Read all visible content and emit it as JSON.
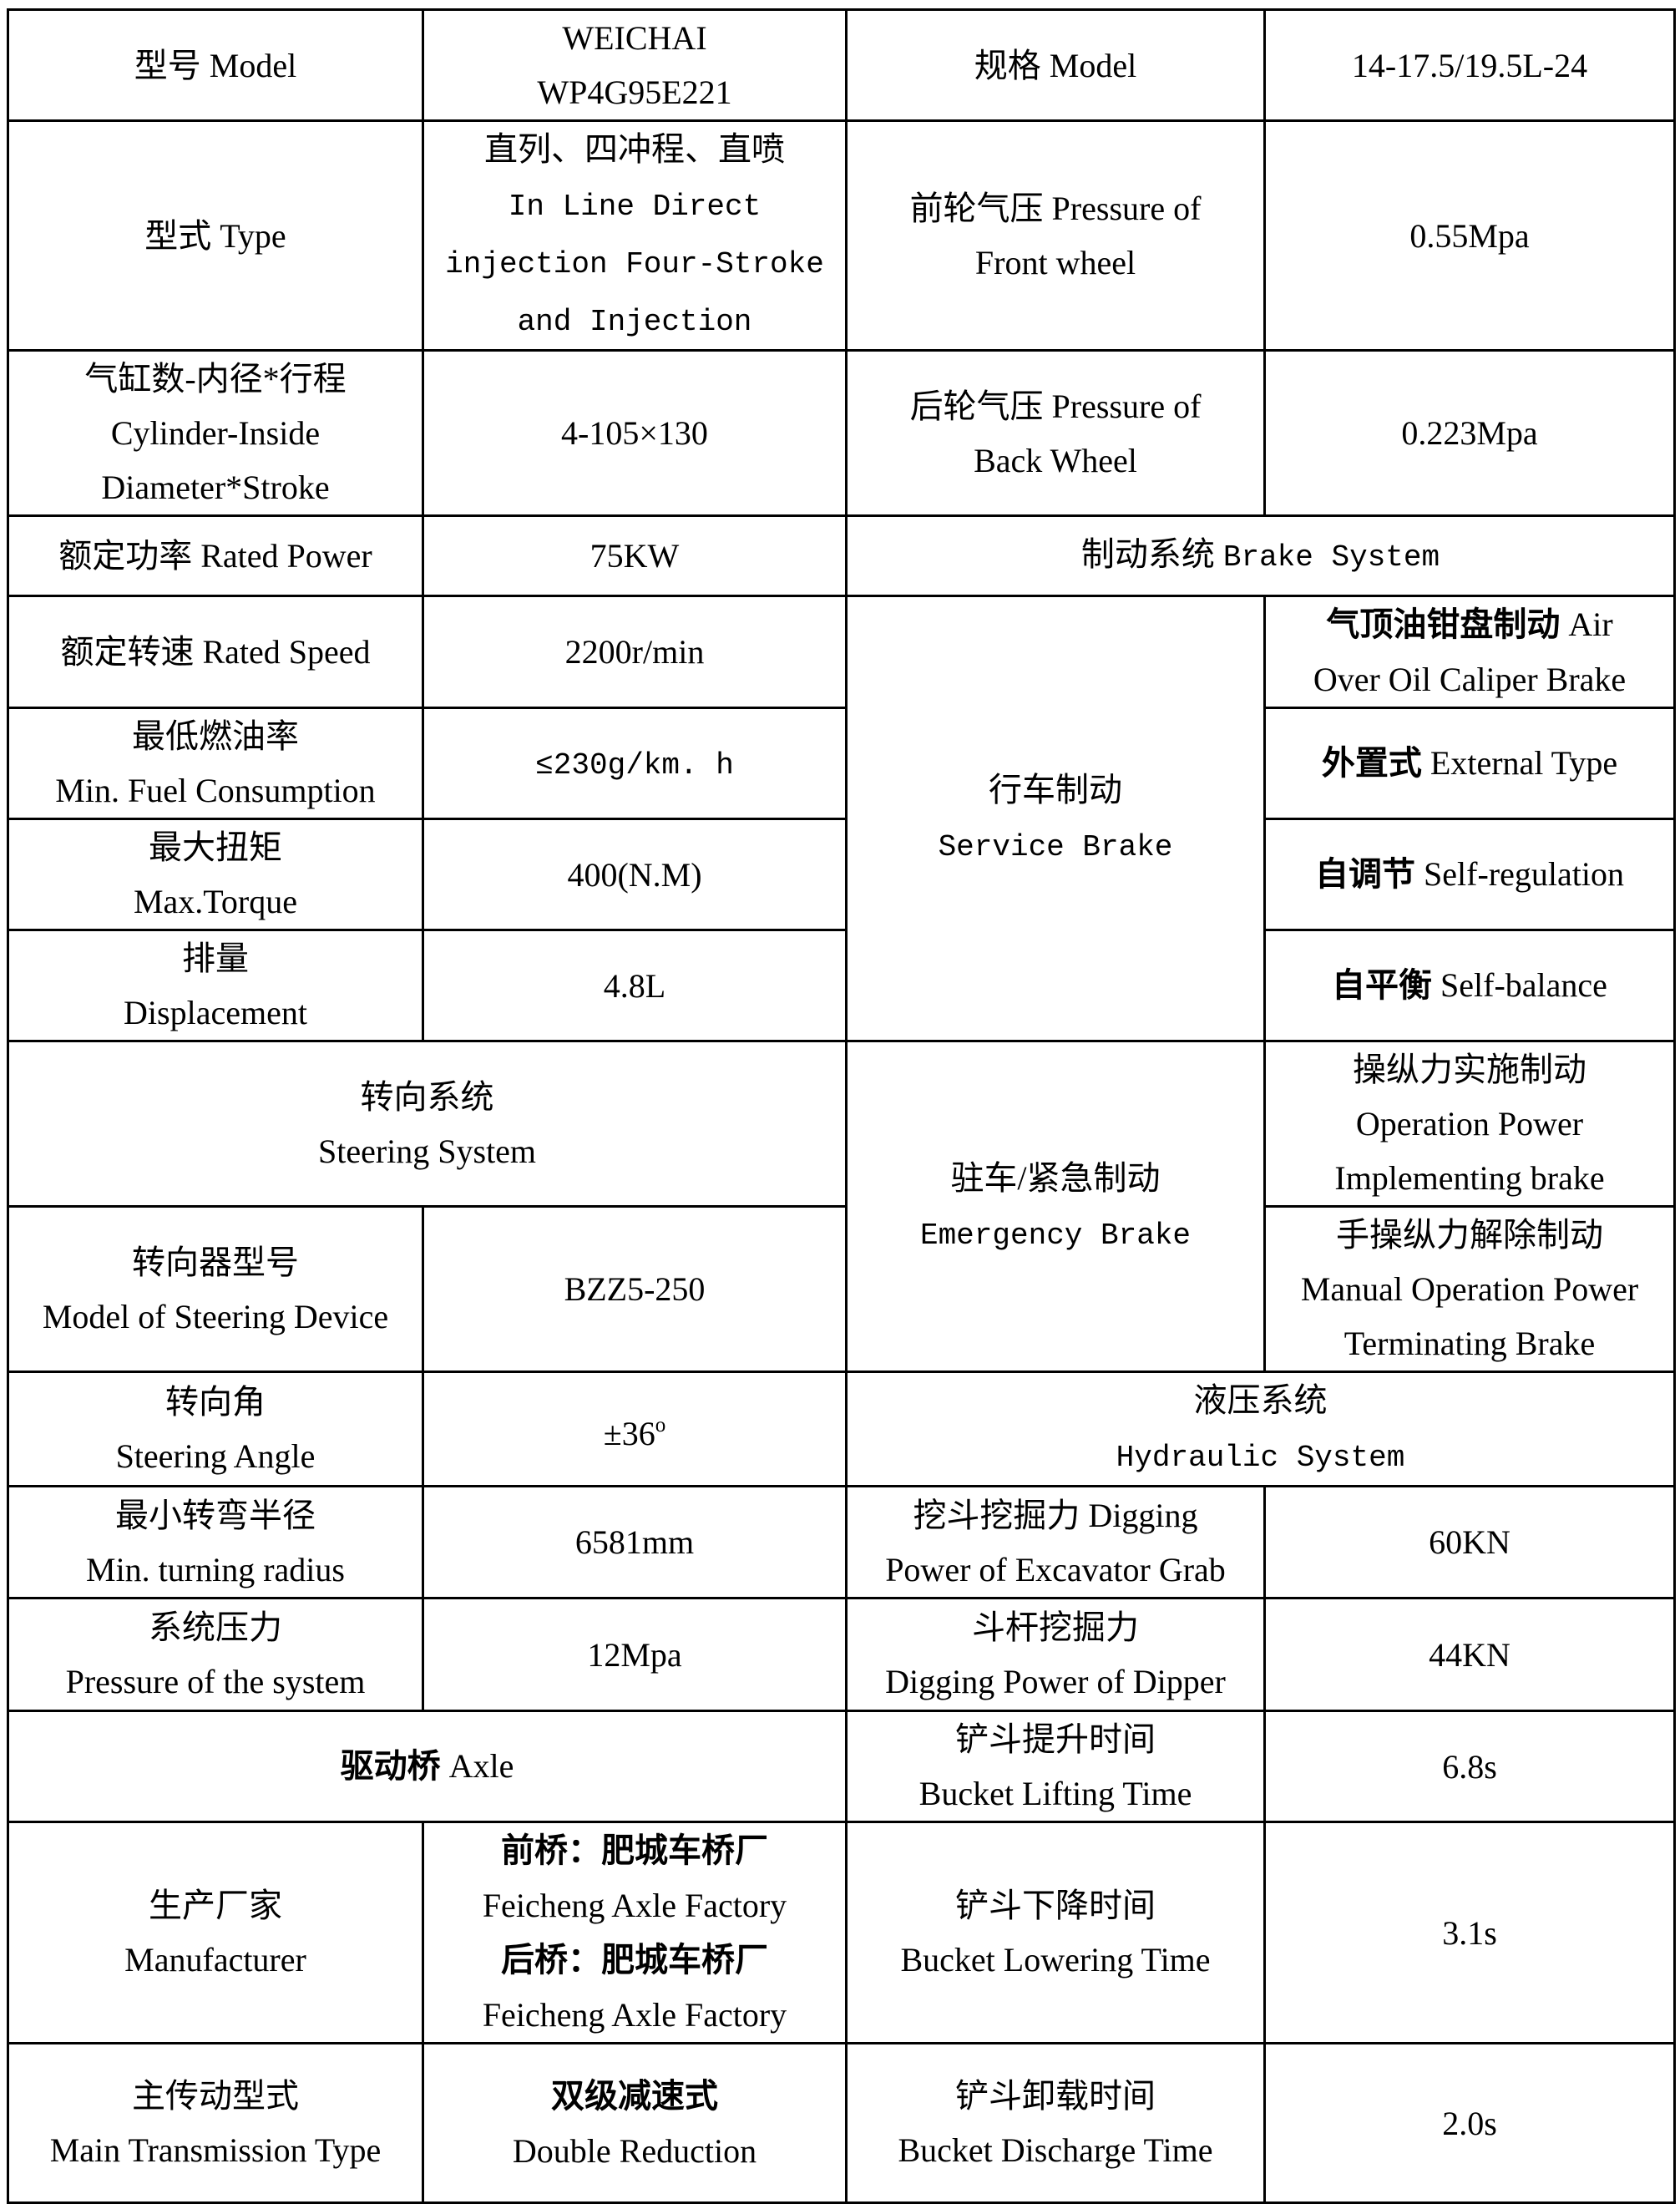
{
  "document": {
    "kind": "specification-table",
    "language": "zh-en"
  },
  "colors": {
    "background": "#ffffff",
    "border": "#000000",
    "text": "#000000"
  },
  "cells": {
    "model_label": [
      [
        "型号 Model"
      ]
    ],
    "model_value": [
      [
        "WEICHAI"
      ],
      [
        "WP4G95E221"
      ]
    ],
    "spec_label": [
      [
        "规格 Model"
      ]
    ],
    "spec_value": [
      [
        "14-17.5/19.5L-24"
      ]
    ],
    "type_label": [
      [
        "型式 Type"
      ]
    ],
    "type_value": [
      [
        "直列、四冲程、直喷"
      ],
      [
        {
          "t": "In Line Direct",
          "c": "mono"
        }
      ],
      [
        {
          "t": "injection Four-Stroke",
          "c": "mono"
        }
      ],
      [
        {
          "t": "and Injection",
          "c": "mono"
        }
      ]
    ],
    "front_pressure_label": [
      [
        "前轮气压 Pressure of"
      ],
      [
        "Front wheel"
      ]
    ],
    "front_pressure_value": [
      [
        "0.55Mpa"
      ]
    ],
    "cylinder_label": [
      [
        "气缸数-内径*行程"
      ],
      [
        "Cylinder-Inside"
      ],
      [
        "Diameter*Stroke"
      ]
    ],
    "cylinder_value": [
      [
        "4-105×130"
      ]
    ],
    "back_pressure_label": [
      [
        "后轮气压 Pressure of"
      ],
      [
        "Back Wheel"
      ]
    ],
    "back_pressure_value": [
      [
        "0.223Mpa"
      ]
    ],
    "rated_power_label": [
      [
        "额定功率 Rated Power"
      ]
    ],
    "rated_power_value": [
      [
        "75KW"
      ]
    ],
    "brake_system_header": [
      [
        "制动系统 ",
        {
          "t": "Brake System",
          "c": "mono"
        }
      ]
    ],
    "rated_speed_label": [
      [
        "额定转速 Rated Speed"
      ]
    ],
    "rated_speed_value": [
      [
        "2200r/min"
      ]
    ],
    "service_brake_label": [
      [
        "行车制动"
      ],
      [
        {
          "t": "Service Brake",
          "c": "mono"
        }
      ]
    ],
    "caliper_brake_value": [
      [
        {
          "t": "气顶油钳盘制动",
          "c": "hei"
        },
        " Air"
      ],
      [
        "Over Oil Caliper Brake"
      ]
    ],
    "min_fuel_label": [
      [
        "最低燃油率"
      ],
      [
        "Min. Fuel Consumption"
      ]
    ],
    "min_fuel_value": [
      [
        {
          "t": "≤230g/km. h",
          "c": "mono"
        }
      ]
    ],
    "max_torque_label": [
      [
        "最大扭矩"
      ],
      [
        "Max.Torque"
      ]
    ],
    "max_torque_value": [
      [
        "400(N.M)"
      ]
    ],
    "self_regulation_value": [
      [
        {
          "t": "自调节",
          "c": "hei"
        },
        " Self-regulation"
      ]
    ],
    "displacement_label": [
      [
        "排量"
      ],
      [
        "Displacement"
      ]
    ],
    "displacement_value": [
      [
        "4.8L"
      ]
    ],
    "self_balance_value": [
      [
        {
          "t": "自平衡",
          "c": "hei"
        },
        " Self-balance"
      ]
    ],
    "external_type_value": [
      [
        {
          "t": "外置式",
          "c": "hei"
        },
        " External Type"
      ]
    ],
    "steering_system_header": [
      [
        "转向系统"
      ],
      [
        "Steering System"
      ]
    ],
    "emergency_brake_label": [
      [
        "驻车/紧急制动"
      ],
      [
        {
          "t": "Emergency Brake",
          "c": "mono"
        }
      ]
    ],
    "operation_power_value": [
      [
        "操纵力实施制动"
      ],
      [
        "Operation Power"
      ],
      [
        "Implementing brake"
      ]
    ],
    "steering_device_label": [
      [
        "转向器型号"
      ],
      [
        "Model of Steering Device"
      ]
    ],
    "steering_device_value": [
      [
        "BZZ5-250"
      ]
    ],
    "manual_power_value": [
      [
        "手操纵力解除制动"
      ],
      [
        "Manual Operation Power"
      ],
      [
        "Terminating Brake"
      ]
    ],
    "steering_angle_label": [
      [
        "转向角"
      ],
      [
        "Steering Angle"
      ]
    ],
    "steering_angle_value": [
      [
        "±36",
        {
          "t": "o",
          "c": "sup"
        }
      ]
    ],
    "hydraulic_system_header": [
      [
        "液压系统"
      ],
      [
        {
          "t": "Hydraulic System",
          "c": "mono"
        }
      ]
    ],
    "turning_radius_label": [
      [
        "最小转弯半径"
      ],
      [
        "Min. turning radius"
      ]
    ],
    "turning_radius_value": [
      [
        "6581mm"
      ]
    ],
    "grab_digging_label": [
      [
        "挖斗挖掘力 Digging"
      ],
      [
        "Power of Excavator Grab"
      ]
    ],
    "grab_digging_value": [
      [
        "60KN"
      ]
    ],
    "system_pressure_label": [
      [
        "系统压力"
      ],
      [
        "Pressure of the system"
      ]
    ],
    "system_pressure_value": [
      [
        "12Mpa"
      ]
    ],
    "dipper_digging_label": [
      [
        "斗杆挖掘力"
      ],
      [
        "Digging Power of Dipper"
      ]
    ],
    "dipper_digging_value": [
      [
        "44KN"
      ]
    ],
    "axle_header": [
      [
        {
          "t": "驱动桥",
          "c": "hei"
        },
        " Axle"
      ]
    ],
    "bucket_lifting_label": [
      [
        "铲斗提升时间"
      ],
      [
        "Bucket Lifting Time"
      ]
    ],
    "bucket_lifting_value": [
      [
        "6.8s"
      ]
    ],
    "manufacturer_label": [
      [
        "生产厂家"
      ],
      [
        "Manufacturer"
      ]
    ],
    "manufacturer_value": [
      [
        {
          "t": "前桥：肥城车桥厂",
          "c": "hei"
        }
      ],
      [
        "Feicheng Axle Factory"
      ],
      [
        {
          "t": "后桥：肥城车桥厂",
          "c": "hei"
        }
      ],
      [
        "Feicheng Axle Factory"
      ]
    ],
    "bucket_lowering_label": [
      [
        "铲斗下降时间"
      ],
      [
        "Bucket Lowering Time"
      ]
    ],
    "bucket_lowering_value": [
      [
        "3.1s"
      ]
    ],
    "main_transmission_label": [
      [
        "主传动型式"
      ],
      [
        "Main Transmission Type"
      ]
    ],
    "main_transmission_value": [
      [
        {
          "t": "双级减速式",
          "c": "hei"
        }
      ],
      [
        "Double Reduction"
      ]
    ],
    "bucket_discharge_label": [
      [
        "铲斗卸载时间"
      ],
      [
        "Bucket Discharge Time"
      ]
    ],
    "bucket_discharge_value": [
      [
        "2.0s"
      ]
    ]
  }
}
